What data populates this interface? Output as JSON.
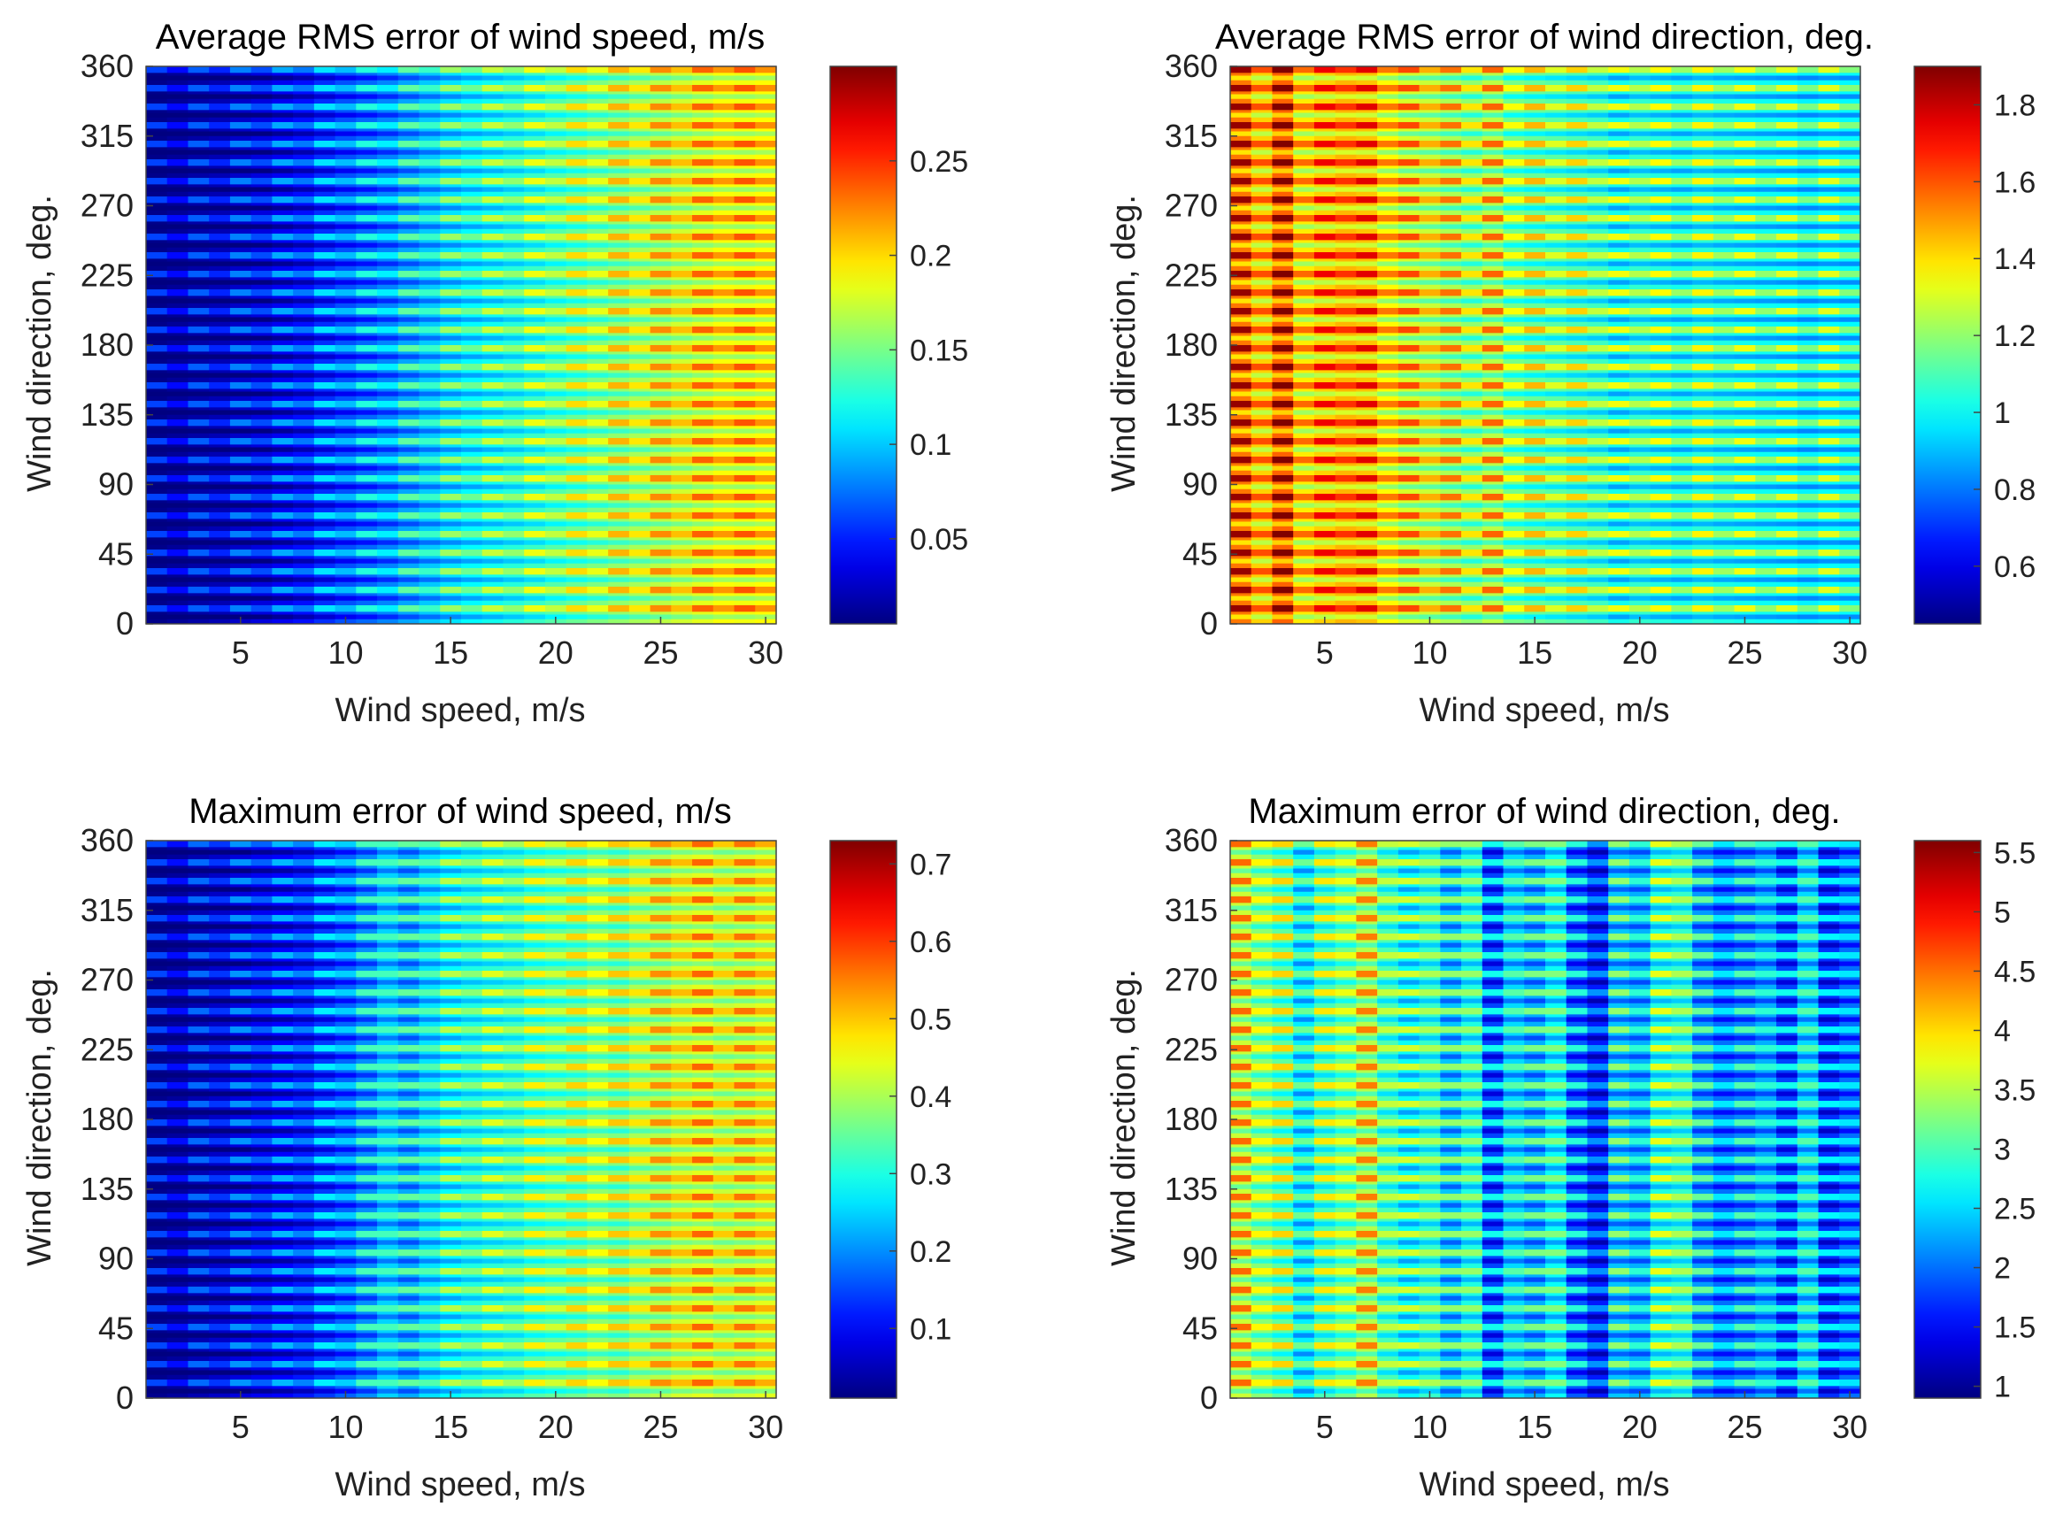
{
  "chart_data": [
    {
      "type": "heatmap",
      "title": "Average RMS error of wind speed, m/s",
      "xlabel": "Wind speed, m/s",
      "ylabel": "Wind direction, deg.",
      "xlim": [
        1,
        30
      ],
      "ylim": [
        0,
        360
      ],
      "xticks": [
        5,
        10,
        15,
        20,
        25,
        30
      ],
      "yticks": [
        0,
        45,
        90,
        135,
        180,
        225,
        270,
        315,
        360
      ],
      "colorbar": {
        "clim": [
          0.005,
          0.3
        ],
        "ticks": [
          0.05,
          0.1,
          0.15,
          0.2,
          0.25
        ],
        "tick_labels": [
          "0.05",
          "0.1",
          "0.15",
          "0.2",
          "0.25"
        ]
      },
      "x": [
        1,
        2,
        3,
        4,
        5,
        6,
        7,
        8,
        9,
        10,
        11,
        12,
        13,
        14,
        15,
        16,
        17,
        18,
        19,
        20,
        21,
        22,
        23,
        24,
        25,
        26,
        27,
        28,
        29,
        30
      ],
      "values_by_speed": [
        0.008,
        0.012,
        0.016,
        0.02,
        0.026,
        0.032,
        0.038,
        0.045,
        0.055,
        0.065,
        0.072,
        0.08,
        0.09,
        0.1,
        0.108,
        0.115,
        0.12,
        0.126,
        0.132,
        0.14,
        0.146,
        0.152,
        0.158,
        0.164,
        0.17,
        0.176,
        0.182,
        0.188,
        0.186,
        0.19
      ],
      "stripe_amplitude": 0.18
    },
    {
      "type": "heatmap",
      "title": "Average RMS error of wind direction, deg.",
      "xlabel": "Wind speed, m/s",
      "ylabel": "Wind direction, deg.",
      "xlim": [
        1,
        30
      ],
      "ylim": [
        0,
        360
      ],
      "xticks": [
        5,
        10,
        15,
        20,
        25,
        30
      ],
      "yticks": [
        0,
        45,
        90,
        135,
        180,
        225,
        270,
        315,
        360
      ],
      "colorbar": {
        "clim": [
          0.45,
          1.9
        ],
        "ticks": [
          0.6,
          0.8,
          1,
          1.2,
          1.4,
          1.6,
          1.8
        ],
        "tick_labels": [
          "0.6",
          "0.8",
          "1",
          "1.2",
          "1.4",
          "1.6",
          "1.8"
        ]
      },
      "x": [
        1,
        2,
        3,
        4,
        5,
        6,
        7,
        8,
        9,
        10,
        11,
        12,
        13,
        14,
        15,
        16,
        17,
        18,
        19,
        20,
        21,
        22,
        23,
        24,
        25,
        26,
        27,
        28,
        29,
        30
      ],
      "values_by_speed": [
        1.55,
        1.42,
        1.58,
        1.38,
        1.42,
        1.46,
        1.44,
        1.36,
        1.3,
        1.28,
        1.24,
        1.2,
        1.26,
        1.16,
        1.14,
        1.12,
        1.1,
        1.08,
        1.02,
        1.06,
        1.04,
        1.02,
        1.05,
        1.03,
        1.02,
        1.01,
        1.0,
        0.98,
        1.0,
        0.99
      ],
      "stripe_amplitude": 0.22
    },
    {
      "type": "heatmap",
      "title": "Maximum error of wind speed, m/s",
      "xlabel": "Wind speed, m/s",
      "ylabel": "Wind direction, deg.",
      "xlim": [
        1,
        30
      ],
      "ylim": [
        0,
        360
      ],
      "xticks": [
        5,
        10,
        15,
        20,
        25,
        30
      ],
      "yticks": [
        0,
        45,
        90,
        135,
        180,
        225,
        270,
        315,
        360
      ],
      "colorbar": {
        "clim": [
          0.01,
          0.73
        ],
        "ticks": [
          0.1,
          0.2,
          0.3,
          0.4,
          0.5,
          0.6,
          0.7
        ],
        "tick_labels": [
          "0.1",
          "0.2",
          "0.3",
          "0.4",
          "0.5",
          "0.6",
          "0.7"
        ]
      },
      "x": [
        1,
        2,
        3,
        4,
        5,
        6,
        7,
        8,
        9,
        10,
        11,
        12,
        13,
        14,
        15,
        16,
        17,
        18,
        19,
        20,
        21,
        22,
        23,
        24,
        25,
        26,
        27,
        28,
        29,
        30
      ],
      "values_by_speed": [
        0.02,
        0.03,
        0.045,
        0.06,
        0.075,
        0.09,
        0.1,
        0.115,
        0.14,
        0.17,
        0.2,
        0.25,
        0.22,
        0.26,
        0.28,
        0.3,
        0.31,
        0.32,
        0.34,
        0.35,
        0.36,
        0.38,
        0.37,
        0.4,
        0.41,
        0.43,
        0.44,
        0.42,
        0.43,
        0.44
      ],
      "stripe_amplitude": 0.18
    },
    {
      "type": "heatmap",
      "title": "Maximum error of wind direction, deg.",
      "xlabel": "Wind speed, m/s",
      "ylabel": "Wind direction, deg.",
      "xlim": [
        1,
        30
      ],
      "ylim": [
        0,
        360
      ],
      "xticks": [
        5,
        10,
        15,
        20,
        25,
        30
      ],
      "yticks": [
        0,
        45,
        90,
        135,
        180,
        225,
        270,
        315,
        360
      ],
      "colorbar": {
        "clim": [
          0.9,
          5.6
        ],
        "ticks": [
          1,
          1.5,
          2,
          2.5,
          3,
          3.5,
          4,
          4.5,
          5,
          5.5
        ],
        "tick_labels": [
          "1",
          "1.5",
          "2",
          "2.5",
          "3",
          "3.5",
          "4",
          "4.5",
          "5",
          "5.5"
        ]
      },
      "x": [
        1,
        2,
        3,
        4,
        5,
        6,
        7,
        8,
        9,
        10,
        11,
        12,
        13,
        14,
        15,
        16,
        17,
        18,
        19,
        20,
        21,
        22,
        23,
        24,
        25,
        26,
        27,
        28,
        29,
        30
      ],
      "values_by_speed": [
        3.6,
        3.3,
        3.1,
        2.6,
        3.0,
        3.2,
        3.5,
        3.0,
        2.7,
        2.9,
        2.4,
        2.8,
        1.8,
        2.5,
        2.3,
        2.7,
        1.9,
        1.6,
        2.4,
        2.3,
        2.8,
        2.9,
        2.2,
        2.0,
        2.1,
        2.3,
        1.8,
        2.5,
        1.7,
        2.0
      ],
      "stripe_amplitude": 0.2
    }
  ]
}
